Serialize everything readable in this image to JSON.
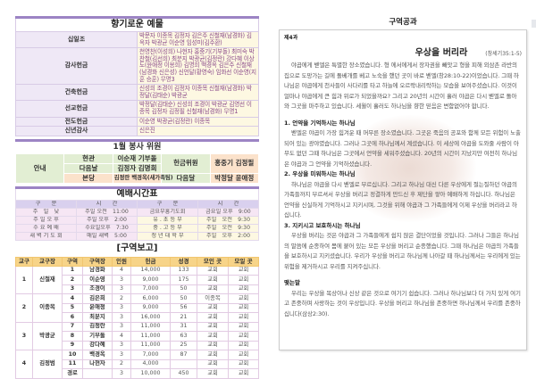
{
  "offerings": {
    "title": "향기로운 예물",
    "rows": [
      {
        "label": "십일조",
        "names": "박문자 이종목 김정자 김은주 신철재(남경화) 김옥자 박광균 이순영 임성미(김주환)"
      },
      {
        "label": "감사헌금",
        "names": "천영찬(이성희) 나현자 홍중기(기부돌) 최미숙 박찬철(김선희) 최분지 박광균(김정란) 강다혜 이상도(윤애정 이용희) 김명희 백경옥 김은주 신철재(남경화 신은성) 신언달(황영숙) 임화선 이순영(지훈 승훈) 무명3"
      },
      {
        "label": "건축헌금",
        "names": "신성희 조경이 김정자 이종목 신철재(남경화) 박정달(김태순) 박광균"
      },
      {
        "label": "선교헌금",
        "names": "박정달(김태순) 신성희 조경이 박광균 김영선 이종목 김정자 김정필 신철재(남경화) 무명1"
      },
      {
        "label": "전도헌금",
        "names": "이순영 박광균(김정란) 이종목"
      },
      {
        "label": "신년감사",
        "names": "신은진"
      }
    ]
  },
  "service": {
    "title": "1월 봉사 위원",
    "guide": "안내",
    "rows": [
      {
        "place": "현관",
        "names": "이순재 기부돌"
      },
      {
        "place": "다음날",
        "names": "김정자 김명희"
      },
      {
        "place": "본당",
        "names": "김정란 백경옥(새가족팀)"
      }
    ],
    "offering_label": "헌금위원",
    "offering_names": "홍중기 김정필",
    "day_label": "다음달",
    "day_names": "박정달 윤애정"
  },
  "worship": {
    "title": "예배시간표",
    "headers": [
      "구　　분",
      "시　　간",
      "구　　분",
      "시　　간"
    ],
    "rows": [
      [
        "주　일　낮",
        "주일 오전　11:00",
        "금요부흥기도회",
        "금요일 오후　9:00"
      ],
      [
        "주 일 오 후",
        "주일 오후　2:00",
        "유 . 초 등 부",
        "주일　오전　9:30"
      ],
      [
        "수 요 예 배",
        "수요일오후　7:30",
        "중 . 고 등 부",
        "주일　오전　9:30"
      ],
      [
        "새 벽 기 도 회",
        "매일 새벽　5:00",
        "청 년 대 학 부",
        "주일　오후　2:00"
      ]
    ]
  },
  "district_report": {
    "title": "[구역보고]",
    "headers": [
      "교구",
      "교구장",
      "구역",
      "구역장",
      "인원",
      "헌금",
      "성경",
      "모인 곳",
      "모일 곳"
    ],
    "groups": [
      {
        "no": "1",
        "leader": "신철재",
        "rows": [
          [
            "1",
            "남경화",
            "4",
            "14,000",
            "133",
            "교회",
            "교회"
          ],
          [
            "2",
            "이순영",
            "3",
            "9,000",
            "175",
            "교회",
            "교회"
          ],
          [
            "3",
            "조경이",
            "3",
            "7,000",
            "50",
            "교회",
            "교회"
          ]
        ]
      },
      {
        "no": "2",
        "leader": "이종목",
        "rows": [
          [
            "4",
            "김은희",
            "2",
            "6,000",
            "50",
            "이종목",
            "교회"
          ],
          [
            "5",
            "윤애정",
            "3",
            "9,000",
            "56",
            "교회",
            "교회"
          ],
          [
            "6",
            "최분지",
            "3",
            "16,000",
            "21",
            "교회",
            "교회"
          ]
        ]
      },
      {
        "no": "3",
        "leader": "박광균",
        "rows": [
          [
            "7",
            "김정란",
            "3",
            "11,000",
            "31",
            "교회",
            "교회"
          ],
          [
            "8",
            "기부돌",
            "4",
            "11,000",
            "63",
            "교회",
            "교회"
          ],
          [
            "9",
            "강다혜",
            "3",
            "11,000",
            "25",
            "교회",
            "교회"
          ]
        ]
      },
      {
        "no": "4",
        "leader": "김정범",
        "rows": [
          [
            "10",
            "백경옥",
            "3",
            "7,000",
            "87",
            "교회",
            "교회"
          ],
          [
            "11",
            "나현자",
            "2",
            "4,000",
            "",
            "교회",
            "교회"
          ],
          [
            "경로",
            "",
            "3",
            "10,000",
            "450",
            "교회",
            "교회"
          ]
        ]
      }
    ]
  },
  "lesson": {
    "header": "구역공과",
    "number": "제4과",
    "title": "우상을 버리라",
    "reference": "(창세기35:1-5)",
    "intro": "야곱에게 벧엘은 특별한 장소였습니다. 형 에서에게서 장자권을 빼앗고 형을 피해 외삼촌 라반의 집으로 도망가는 길에 돌베개를 베고 노숙을 했던 곳이 바로 벧엘(창28:10-22)이었습니다. 그때 하나님은 야곱에게 천사들이 사다리를 타고 하늘에 오르락내리락하는 모습을 보여주셨습니다. 이것이 얼마나 야곱에게 큰 힘과 위로가 되었을까요? 그리고 20년의 시간이 흘러 야곱은 다시 벧엘로 돌아와 그곳을 마주하고 있습니다. 세월이 흘러도 하나님을 향한 믿음은 변함없어야 합니다.",
    "sections": [
      {
        "heading": "1. 언약을 기억하시는 하나님",
        "body": "벧엘은 야곱이 가장 힘겨운 때 머무른 장소였습니다. 그곳은 죽음의 공포와 함께 모든 위험이 노출되어 있는 광야였습니다. 그러나 그곳에 하나님께서 계셨습니다. 이 세상에 야곱을 도와줄 사람이 아무도 없던 그때 하나님은 그곳에서 언약을 세워주셨습니다. 20년의 시간이 지났지만 여전히 하나님은 야곱과 그 언약을 기억하셨습니다."
      },
      {
        "heading": "2. 우상을 미워하시는 하나님",
        "body": "하나님은 야곱을 다시 벧엘로 부르십니다. 그리고 하나님 대신 다른 우상에게 절는질하던 야곱의 가족들까지 부르셔서 우상을 버리고 정결하게 만드신 후 제단을 쌓아 예배하게 하십니다. 하나님은 언약을 신실하게 기억하시고 지키시며, 그것을 위해 야곱과 그 가족들에게 이제 우상을 버리라고 하십니다."
      },
      {
        "heading": "3. 지키시고 보호하시는 하나님",
        "body": "우상을 버리는 것은 야곱과 그 가족들에게 쉽지 않은 결단이었을 것입니다. 그러나 그들은 하나님의 말씀에 순종하여 몸에 붙어 있는 모든 우상을 버리고 순종했습니다. 그때 하나님은 야곱의 가족들을 보호하시고 지키셨습니다. 우리가 우상을 버리고 하나님께 나아갈 때 하나님께서는 우리에게 있는 위험을 제거하시고 우리를 지켜주십니다."
      }
    ],
    "closing_heading": "맺는말",
    "closing": "우리는 우상을 목상이나 신상 같은 것으로 여기기 쉽습니다. 그러나 하나님보다 더 가치 있게 여기고 존중하며 사랑하는 것이 우상입니다. 우상을 버리고 하나님을 존중하면 하나님께서 우리를 존중하십니다(삼상2:30)."
  }
}
